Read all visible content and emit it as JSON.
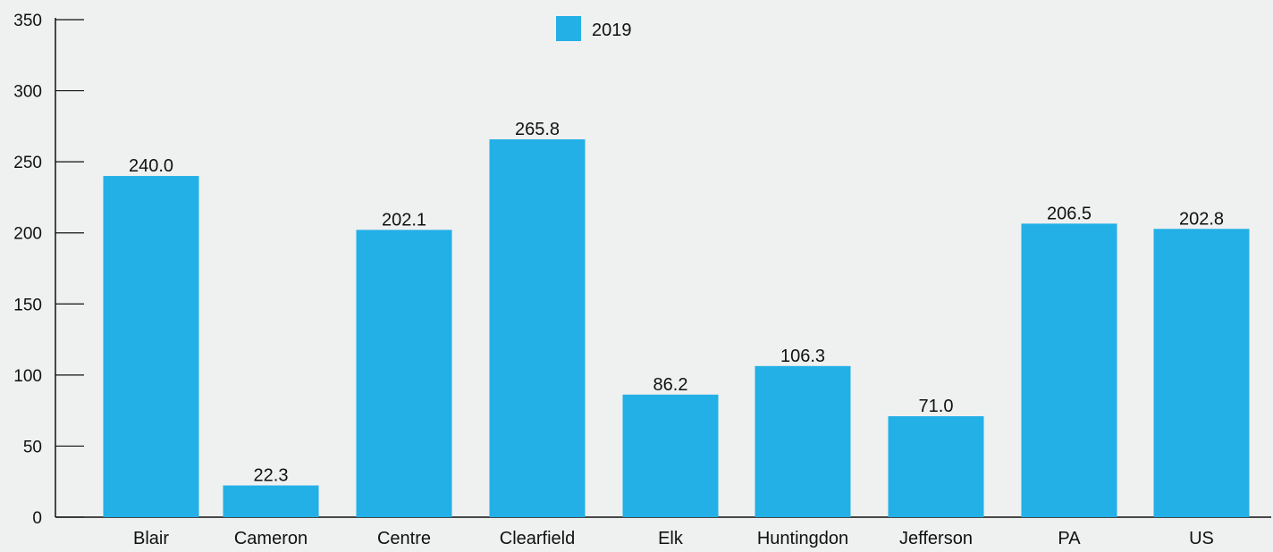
{
  "chart_data": {
    "type": "bar",
    "categories": [
      "Blair",
      "Cameron",
      "Centre",
      "Clearfield",
      "Elk",
      "Huntingdon",
      "Jefferson",
      "PA",
      "US"
    ],
    "series": [
      {
        "name": "2019",
        "values": [
          240.0,
          22.3,
          202.1,
          265.8,
          86.2,
          106.3,
          71.0,
          206.5,
          202.8
        ],
        "value_labels": [
          "240.0",
          "22.3",
          "202.1",
          "265.8",
          "86.2",
          "106.3",
          "71.0",
          "206.5",
          "202.8"
        ]
      }
    ],
    "title": "",
    "xlabel": "",
    "ylabel": "",
    "ylim": [
      0,
      350
    ],
    "yticks": [
      0,
      50,
      100,
      150,
      200,
      250,
      300,
      350
    ],
    "ytick_labels": [
      "0",
      "50",
      "100",
      "150",
      "200",
      "250",
      "300",
      "350"
    ],
    "grid": false,
    "legend_position": "top-center",
    "colors": {
      "bar": "#22b0e6",
      "axis": "#111111",
      "background": "#eff0f0"
    }
  }
}
